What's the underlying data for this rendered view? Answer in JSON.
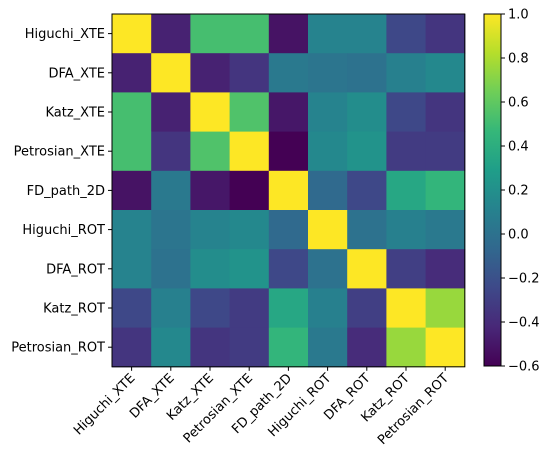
{
  "chart_data": {
    "type": "heatmap",
    "row_labels": [
      "Higuchi_XTE",
      "DFA_XTE",
      "Katz_XTE",
      "Petrosian_XTE",
      "FD_path_2D",
      "Higuchi_ROT",
      "DFA_ROT",
      "Katz_ROT",
      "Petrosian_ROT"
    ],
    "col_labels": [
      "Higuchi_XTE",
      "DFA_XTE",
      "Katz_XTE",
      "Petrosian_XTE",
      "FD_path_2D",
      "Higuchi_ROT",
      "DFA_ROT",
      "Katz_ROT",
      "Petrosian_ROT"
    ],
    "values": [
      [
        1.0,
        -0.45,
        0.52,
        0.52,
        -0.52,
        0.12,
        0.12,
        -0.25,
        -0.35
      ],
      [
        -0.45,
        1.0,
        -0.45,
        -0.35,
        0.05,
        0.02,
        0.0,
        0.1,
        0.15
      ],
      [
        0.52,
        -0.45,
        1.0,
        0.55,
        -0.5,
        0.12,
        0.18,
        -0.25,
        -0.35
      ],
      [
        0.52,
        -0.35,
        0.55,
        1.0,
        -0.6,
        0.15,
        0.22,
        -0.32,
        -0.32
      ],
      [
        -0.52,
        0.05,
        -0.5,
        -0.6,
        1.0,
        -0.05,
        -0.25,
        0.35,
        0.45
      ],
      [
        0.12,
        0.02,
        0.12,
        0.15,
        -0.05,
        1.0,
        0.0,
        0.1,
        0.05
      ],
      [
        0.12,
        0.0,
        0.18,
        0.22,
        -0.25,
        0.0,
        1.0,
        -0.3,
        -0.4
      ],
      [
        -0.25,
        0.1,
        -0.25,
        -0.32,
        0.35,
        0.1,
        -0.3,
        1.0,
        0.75
      ],
      [
        -0.35,
        0.15,
        -0.35,
        -0.32,
        0.45,
        0.05,
        -0.4,
        0.75,
        1.0
      ]
    ],
    "colormap": "viridis",
    "colorbar": {
      "range": [
        -0.6,
        1.0
      ],
      "ticks": [
        "1.0",
        "0.8",
        "0.6",
        "0.4",
        "0.2",
        "0.0",
        "−0.2",
        "−0.4",
        "−0.6"
      ]
    },
    "viridis_stops": [
      "#440154",
      "#482878",
      "#3e4989",
      "#31688e",
      "#26828e",
      "#1f9e89",
      "#35b779",
      "#6ece58",
      "#b5de2b",
      "#fde725"
    ]
  }
}
